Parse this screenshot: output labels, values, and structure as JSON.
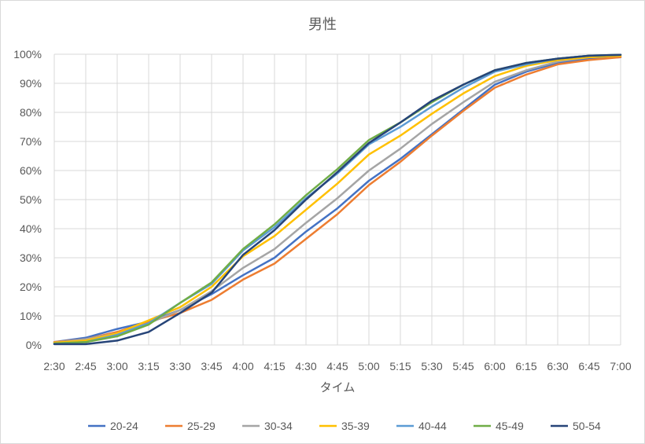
{
  "chart_data": {
    "type": "line",
    "title": "男性",
    "xlabel": "タイム",
    "ylabel": "",
    "ylim": [
      0,
      1
    ],
    "y_ticks": [
      "0%",
      "10%",
      "20%",
      "30%",
      "40%",
      "50%",
      "60%",
      "70%",
      "80%",
      "90%",
      "100%"
    ],
    "categories": [
      "2:30",
      "2:45",
      "3:00",
      "3:15",
      "3:30",
      "3:45",
      "4:00",
      "4:15",
      "4:30",
      "4:45",
      "5:00",
      "5:15",
      "5:30",
      "5:45",
      "6:00",
      "6:15",
      "6:30",
      "6:45",
      "7:00"
    ],
    "grid": true,
    "legend_position": "bottom",
    "series": [
      {
        "name": "20-24",
        "color": "#4472C4",
        "values": [
          0.01,
          0.025,
          0.055,
          0.08,
          0.12,
          0.175,
          0.24,
          0.3,
          0.39,
          0.47,
          0.565,
          0.64,
          0.725,
          0.81,
          0.895,
          0.94,
          0.97,
          0.985,
          0.99
        ]
      },
      {
        "name": "25-29",
        "color": "#ED7D31",
        "values": [
          0.01,
          0.02,
          0.045,
          0.08,
          0.11,
          0.155,
          0.225,
          0.28,
          0.365,
          0.45,
          0.55,
          0.63,
          0.72,
          0.805,
          0.885,
          0.93,
          0.965,
          0.98,
          0.99
        ]
      },
      {
        "name": "30-34",
        "color": "#A5A5A5",
        "values": [
          0.008,
          0.02,
          0.04,
          0.075,
          0.12,
          0.185,
          0.265,
          0.33,
          0.42,
          0.505,
          0.6,
          0.675,
          0.76,
          0.835,
          0.905,
          0.945,
          0.975,
          0.99,
          0.995
        ]
      },
      {
        "name": "35-39",
        "color": "#FFC000",
        "values": [
          0.008,
          0.015,
          0.04,
          0.085,
          0.13,
          0.2,
          0.305,
          0.375,
          0.465,
          0.555,
          0.655,
          0.72,
          0.795,
          0.865,
          0.925,
          0.96,
          0.98,
          0.99,
          0.995
        ]
      },
      {
        "name": "40-44",
        "color": "#5B9BD5",
        "values": [
          0.005,
          0.01,
          0.035,
          0.075,
          0.145,
          0.21,
          0.325,
          0.405,
          0.505,
          0.59,
          0.69,
          0.75,
          0.82,
          0.885,
          0.94,
          0.965,
          0.985,
          0.995,
          0.998
        ]
      },
      {
        "name": "45-49",
        "color": "#70AD47",
        "values": [
          0.005,
          0.01,
          0.03,
          0.07,
          0.145,
          0.215,
          0.33,
          0.415,
          0.515,
          0.605,
          0.705,
          0.765,
          0.835,
          0.895,
          0.945,
          0.97,
          0.985,
          0.995,
          0.998
        ]
      },
      {
        "name": "50-54",
        "color": "#264478",
        "values": [
          0.003,
          0.003,
          0.015,
          0.045,
          0.11,
          0.18,
          0.31,
          0.395,
          0.5,
          0.595,
          0.695,
          0.765,
          0.84,
          0.895,
          0.945,
          0.97,
          0.985,
          0.995,
          0.998
        ]
      }
    ]
  }
}
